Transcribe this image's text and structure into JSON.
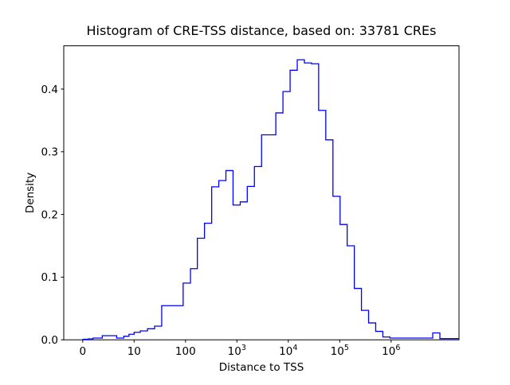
{
  "title": "Histogram of CRE-TSS distance, based on: 33781 CREs",
  "chart_data": {
    "type": "histogram-step",
    "title": "Histogram of CRE-TSS distance, based on: 33781 CREs",
    "xlabel": "Distance to TSS",
    "ylabel": "Density",
    "x_scale": "symlog",
    "linthresh": 10,
    "x_max": 21000000,
    "ylim": [
      0,
      0.469
    ],
    "grid": false,
    "legend": "none",
    "line_color": "#0000ff",
    "n_samples": 33781,
    "x_ticks": [
      {
        "v": 0,
        "base": "0",
        "exp": ""
      },
      {
        "v": 10,
        "base": "10",
        "exp": ""
      },
      {
        "v": 100,
        "base": "100",
        "exp": ""
      },
      {
        "v": 1000,
        "base": "10",
        "exp": "3"
      },
      {
        "v": 10000,
        "base": "10",
        "exp": "4"
      },
      {
        "v": 100000,
        "base": "10",
        "exp": "5"
      },
      {
        "v": 1000000,
        "base": "10",
        "exp": "6"
      }
    ],
    "y_ticks": [
      {
        "v": 0.0,
        "label": "0.0"
      },
      {
        "v": 0.1,
        "label": "0.1"
      },
      {
        "v": 0.2,
        "label": "0.2"
      },
      {
        "v": 0.3,
        "label": "0.3"
      },
      {
        "v": 0.4,
        "label": "0.4"
      }
    ],
    "bin_edges": [
      0.05,
      1.1,
      2.0,
      3.8,
      6.6,
      8.0,
      9.0,
      10,
      13.2,
      18.2,
      25,
      34.4,
      90,
      125,
      170,
      234,
      323,
      444,
      611,
      841,
      1160,
      1590,
      2190,
      3020,
      5715,
      7870,
      10840,
      14920,
      20550,
      28260,
      38900,
      53580,
      73790,
      101600,
      139700,
      192400,
      264800,
      364600,
      501600,
      690400,
      950000,
      6460000,
      8890000,
      21000000
    ],
    "densities": [
      0.0008,
      0.0015,
      0.0028,
      0.0066,
      0.0028,
      0.0057,
      0.0088,
      0.012,
      0.0142,
      0.0176,
      0.0218,
      0.0545,
      0.0905,
      0.1135,
      0.162,
      0.186,
      0.244,
      0.254,
      0.27,
      0.215,
      0.22,
      0.2447,
      0.2764,
      0.327,
      0.362,
      0.396,
      0.43,
      0.4468,
      0.4417,
      0.4404,
      0.366,
      0.319,
      0.229,
      0.184,
      0.15,
      0.082,
      0.047,
      0.027,
      0.0135,
      0.0045,
      0.0028,
      0.011,
      0.0019
    ]
  }
}
